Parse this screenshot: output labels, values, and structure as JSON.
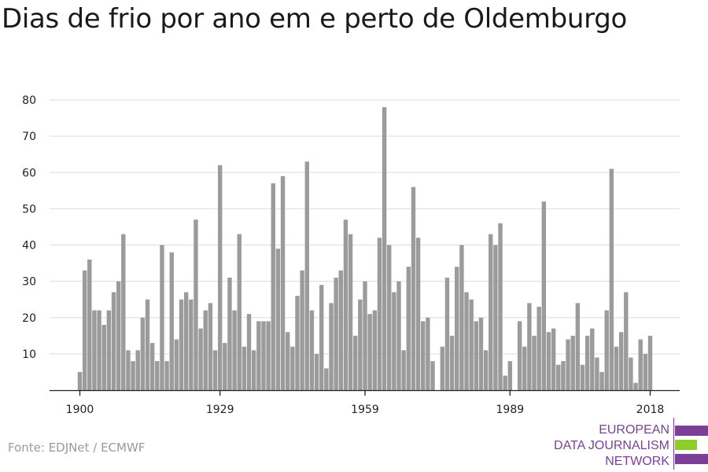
{
  "title": "Dias de frio por ano em e perto de Oldemburgo",
  "source": "Fonte: EDJNet / ECMWF",
  "logo": {
    "lines": [
      "EUROPEAN",
      "DATA JOURNALISM",
      "NETWORK"
    ]
  },
  "colors": {
    "bar": "#9b9b9b",
    "grid": "#dddddd",
    "axis": "#222222",
    "logo_purple": "#7b3f98",
    "logo_green": "#8fce2a"
  },
  "chart_data": {
    "type": "bar",
    "title": "Dias de frio por ano em e perto de Oldemburgo",
    "xlabel": "",
    "ylabel": "",
    "x_start": 1900,
    "x_end": 2018,
    "x_ticks": [
      1900,
      1929,
      1959,
      1989,
      2018
    ],
    "y_ticks": [
      10,
      20,
      30,
      40,
      50,
      60,
      70,
      80
    ],
    "ylim": [
      0,
      83
    ],
    "grid": true,
    "values": [
      5,
      33,
      36,
      22,
      22,
      18,
      22,
      27,
      30,
      43,
      11,
      8,
      11,
      20,
      25,
      13,
      8,
      40,
      8,
      38,
      14,
      25,
      27,
      25,
      47,
      17,
      22,
      24,
      11,
      62,
      13,
      31,
      22,
      43,
      12,
      21,
      11,
      19,
      19,
      19,
      57,
      39,
      59,
      16,
      12,
      26,
      33,
      63,
      22,
      10,
      29,
      6,
      24,
      31,
      33,
      47,
      43,
      15,
      25,
      30,
      21,
      22,
      42,
      78,
      40,
      27,
      30,
      11,
      34,
      56,
      42,
      19,
      20,
      8,
      0,
      12,
      31,
      15,
      34,
      40,
      27,
      25,
      19,
      20,
      11,
      43,
      40,
      46,
      4,
      8,
      0,
      19,
      12,
      24,
      15,
      23,
      52,
      16,
      17,
      7,
      8,
      14,
      15,
      24,
      7,
      15,
      17,
      9,
      5,
      22,
      61,
      12,
      16,
      27,
      9,
      2,
      14,
      10,
      15
    ]
  }
}
